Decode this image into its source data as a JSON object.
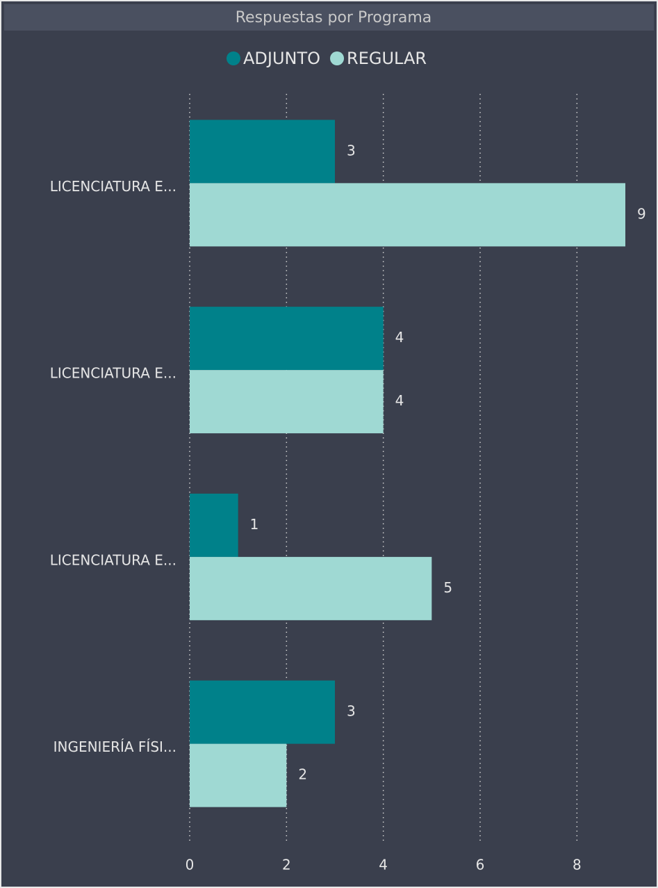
{
  "chart_data": {
    "type": "hbar",
    "title": "Respuestas por Programa",
    "categories": [
      "LICENCIATURA E...",
      "LICENCIATURA E...",
      "LICENCIATURA E...",
      "INGENIERÍA FÍSI..."
    ],
    "series": [
      {
        "name": "ADJUNTO",
        "color": "#00818a",
        "values": [
          3,
          4,
          1,
          3
        ]
      },
      {
        "name": "REGULAR",
        "color": "#9fd9d3",
        "values": [
          9,
          4,
          5,
          2
        ]
      }
    ],
    "xlim": [
      0,
      9
    ],
    "xticks": [
      0,
      2,
      4,
      6,
      8
    ],
    "grid": true,
    "legend": "top"
  }
}
